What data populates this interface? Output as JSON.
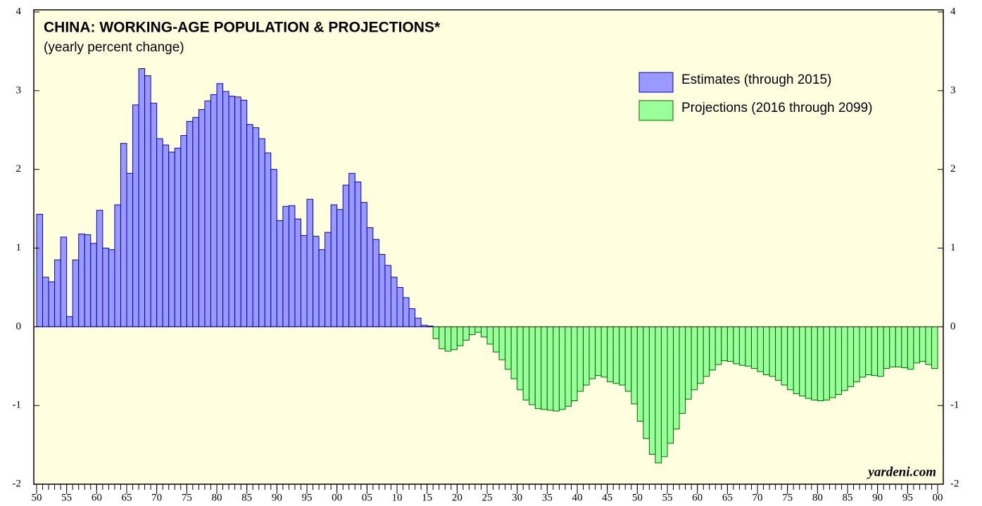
{
  "chart_data": {
    "type": "bar",
    "title": "CHINA: WORKING-AGE POPULATION & PROJECTIONS*",
    "subtitle": "(yearly percent change)",
    "annotation": "yardeni.com",
    "x": [
      1950,
      1951,
      1952,
      1953,
      1954,
      1955,
      1956,
      1957,
      1958,
      1959,
      1960,
      1961,
      1962,
      1963,
      1964,
      1965,
      1966,
      1967,
      1968,
      1969,
      1970,
      1971,
      1972,
      1973,
      1974,
      1975,
      1976,
      1977,
      1978,
      1979,
      1980,
      1981,
      1982,
      1983,
      1984,
      1985,
      1986,
      1987,
      1988,
      1989,
      1990,
      1991,
      1992,
      1993,
      1994,
      1995,
      1996,
      1997,
      1998,
      1999,
      2000,
      2001,
      2002,
      2003,
      2004,
      2005,
      2006,
      2007,
      2008,
      2009,
      2010,
      2011,
      2012,
      2013,
      2014,
      2015,
      2016,
      2017,
      2018,
      2019,
      2020,
      2021,
      2022,
      2023,
      2024,
      2025,
      2026,
      2027,
      2028,
      2029,
      2030,
      2031,
      2032,
      2033,
      2034,
      2035,
      2036,
      2037,
      2038,
      2039,
      2040,
      2041,
      2042,
      2043,
      2044,
      2045,
      2046,
      2047,
      2048,
      2049,
      2050,
      2051,
      2052,
      2053,
      2054,
      2055,
      2056,
      2057,
      2058,
      2059,
      2060,
      2061,
      2062,
      2063,
      2064,
      2065,
      2066,
      2067,
      2068,
      2069,
      2070,
      2071,
      2072,
      2073,
      2074,
      2075,
      2076,
      2077,
      2078,
      2079,
      2080,
      2081,
      2082,
      2083,
      2084,
      2085,
      2086,
      2087,
      2088,
      2089,
      2090,
      2091,
      2092,
      2093,
      2094,
      2095,
      2096,
      2097,
      2098,
      2099
    ],
    "series": [
      {
        "name": "Estimates (through 2015)",
        "color": "#9999ff",
        "stroke": "#0000cc",
        "values": [
          1.43,
          0.63,
          0.57,
          0.85,
          1.14,
          0.13,
          0.85,
          1.18,
          1.17,
          1.06,
          1.48,
          1.0,
          0.98,
          1.55,
          2.33,
          1.95,
          2.82,
          3.28,
          3.19,
          2.84,
          2.39,
          2.31,
          2.22,
          2.27,
          2.43,
          2.61,
          2.66,
          2.76,
          2.87,
          2.95,
          3.09,
          2.99,
          2.93,
          2.92,
          2.88,
          2.57,
          2.53,
          2.39,
          2.21,
          2.0,
          1.35,
          1.53,
          1.54,
          1.37,
          1.16,
          1.62,
          1.15,
          0.98,
          1.2,
          1.55,
          1.49,
          1.8,
          1.95,
          1.84,
          1.58,
          1.26,
          1.11,
          0.92,
          0.78,
          0.63,
          0.5,
          0.37,
          0.23,
          0.11,
          0.02,
          0.01,
          null,
          null,
          null,
          null,
          null,
          null,
          null,
          null,
          null,
          null,
          null,
          null,
          null,
          null,
          null,
          null,
          null,
          null,
          null,
          null,
          null,
          null,
          null,
          null,
          null,
          null,
          null,
          null,
          null,
          null,
          null,
          null,
          null,
          null,
          null,
          null,
          null,
          null,
          null,
          null,
          null,
          null,
          null,
          null,
          null,
          null,
          null,
          null,
          null,
          null,
          null,
          null,
          null,
          null,
          null,
          null,
          null,
          null,
          null,
          null,
          null,
          null,
          null,
          null,
          null,
          null,
          null,
          null,
          null,
          null,
          null,
          null,
          null,
          null,
          null,
          null,
          null,
          null,
          null,
          null,
          null,
          null,
          null,
          null
        ]
      },
      {
        "name": "Projections (2016 through 2099)",
        "color": "#99ff99",
        "stroke": "#006600",
        "values": [
          null,
          null,
          null,
          null,
          null,
          null,
          null,
          null,
          null,
          null,
          null,
          null,
          null,
          null,
          null,
          null,
          null,
          null,
          null,
          null,
          null,
          null,
          null,
          null,
          null,
          null,
          null,
          null,
          null,
          null,
          null,
          null,
          null,
          null,
          null,
          null,
          null,
          null,
          null,
          null,
          null,
          null,
          null,
          null,
          null,
          null,
          null,
          null,
          null,
          null,
          null,
          null,
          null,
          null,
          null,
          null,
          null,
          null,
          null,
          null,
          null,
          null,
          null,
          null,
          null,
          null,
          -0.15,
          -0.28,
          -0.31,
          -0.29,
          -0.24,
          -0.17,
          -0.1,
          -0.07,
          -0.13,
          -0.22,
          -0.32,
          -0.42,
          -0.54,
          -0.66,
          -0.8,
          -0.93,
          -0.99,
          -1.04,
          -1.05,
          -1.06,
          -1.07,
          -1.05,
          -1.01,
          -0.94,
          -0.82,
          -0.74,
          -0.66,
          -0.62,
          -0.64,
          -0.7,
          -0.72,
          -0.74,
          -0.82,
          -0.98,
          -1.2,
          -1.42,
          -1.62,
          -1.73,
          -1.65,
          -1.48,
          -1.3,
          -1.1,
          -0.92,
          -0.8,
          -0.72,
          -0.63,
          -0.55,
          -0.48,
          -0.43,
          -0.44,
          -0.47,
          -0.49,
          -0.5,
          -0.53,
          -0.57,
          -0.61,
          -0.63,
          -0.68,
          -0.74,
          -0.8,
          -0.85,
          -0.88,
          -0.91,
          -0.93,
          -0.94,
          -0.93,
          -0.9,
          -0.86,
          -0.81,
          -0.76,
          -0.7,
          -0.64,
          -0.61,
          -0.62,
          -0.63,
          -0.53,
          -0.51,
          -0.51,
          -0.52,
          -0.54,
          -0.46,
          -0.44,
          -0.48,
          -0.53
        ]
      }
    ],
    "xlim": [
      1950,
      2100
    ],
    "xticks": [
      {
        "value": 1950,
        "label": "50"
      },
      {
        "value": 1955,
        "label": "55"
      },
      {
        "value": 1960,
        "label": "60"
      },
      {
        "value": 1965,
        "label": "65"
      },
      {
        "value": 1970,
        "label": "70"
      },
      {
        "value": 1975,
        "label": "75"
      },
      {
        "value": 1980,
        "label": "80"
      },
      {
        "value": 1985,
        "label": "85"
      },
      {
        "value": 1990,
        "label": "90"
      },
      {
        "value": 1995,
        "label": "95"
      },
      {
        "value": 2000,
        "label": "00"
      },
      {
        "value": 2005,
        "label": "05"
      },
      {
        "value": 2010,
        "label": "10"
      },
      {
        "value": 2015,
        "label": "15"
      },
      {
        "value": 2020,
        "label": "20"
      },
      {
        "value": 2025,
        "label": "25"
      },
      {
        "value": 2030,
        "label": "30"
      },
      {
        "value": 2035,
        "label": "35"
      },
      {
        "value": 2040,
        "label": "40"
      },
      {
        "value": 2045,
        "label": "45"
      },
      {
        "value": 2050,
        "label": "50"
      },
      {
        "value": 2055,
        "label": "55"
      },
      {
        "value": 2060,
        "label": "60"
      },
      {
        "value": 2065,
        "label": "65"
      },
      {
        "value": 2070,
        "label": "70"
      },
      {
        "value": 2075,
        "label": "75"
      },
      {
        "value": 2080,
        "label": "80"
      },
      {
        "value": 2085,
        "label": "85"
      },
      {
        "value": 2090,
        "label": "90"
      },
      {
        "value": 2095,
        "label": "95"
      },
      {
        "value": 2100,
        "label": "00"
      }
    ],
    "ylim": [
      -2,
      4
    ],
    "yticks": [
      -2,
      -1,
      0,
      1,
      2,
      3,
      4
    ],
    "background": "#ffffe0"
  }
}
